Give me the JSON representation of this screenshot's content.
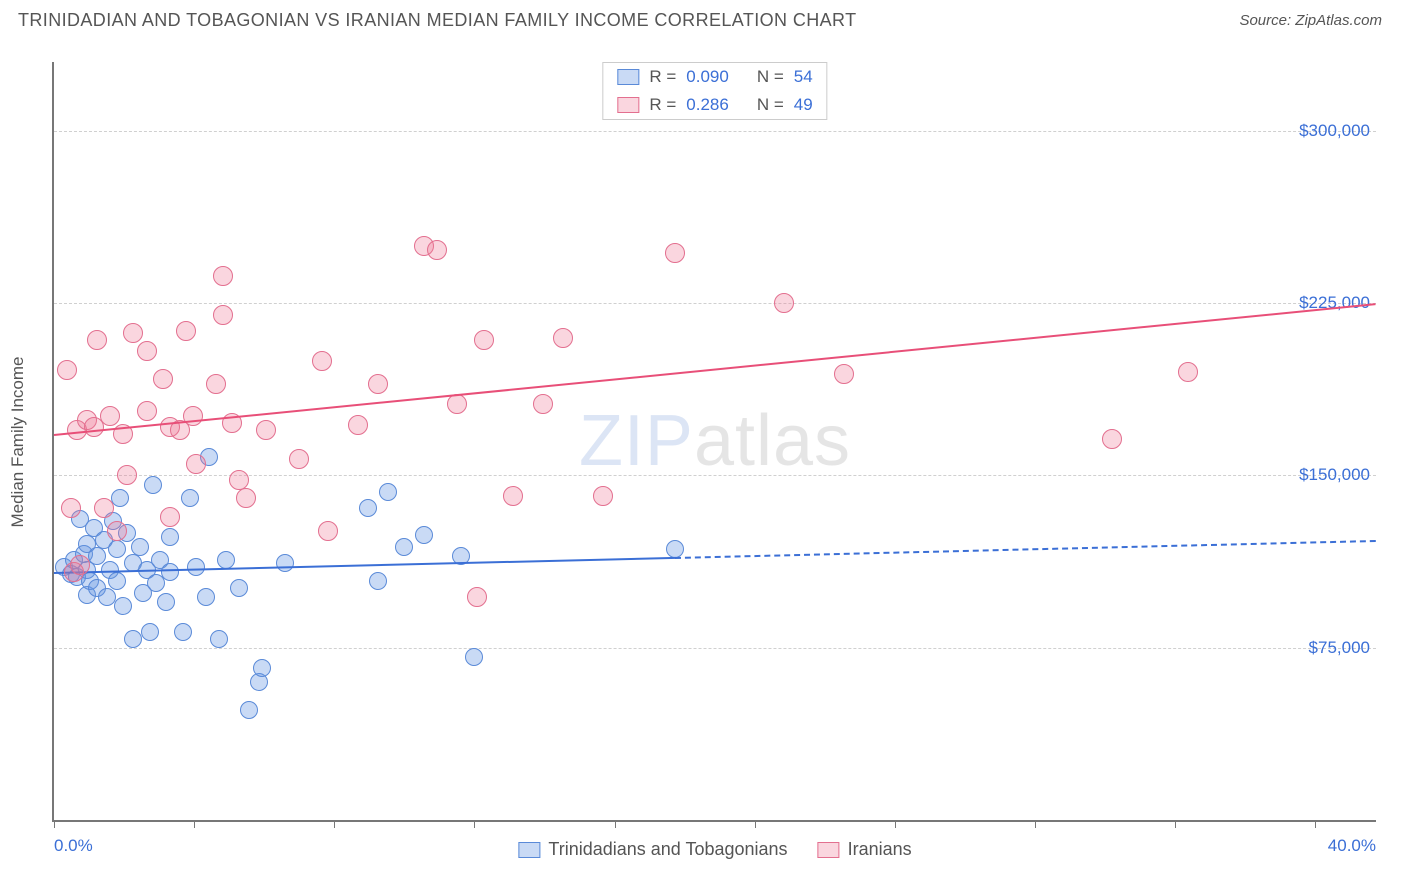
{
  "title": "TRINIDADIAN AND TOBAGONIAN VS IRANIAN MEDIAN FAMILY INCOME CORRELATION CHART",
  "source": "Source: ZipAtlas.com",
  "watermark": {
    "a": "ZIP",
    "b": "atlas"
  },
  "chart": {
    "type": "scatter-with-trend",
    "background_color": "#ffffff",
    "grid_color": "#d0d0d0",
    "axis_color": "#777777",
    "value_label_color": "#3b6fd6",
    "text_color": "#555555",
    "x": {
      "min": 0.0,
      "max": 40.0,
      "min_label": "0.0%",
      "max_label": "40.0%",
      "tick_positions_pct": [
        0,
        0.106,
        0.212,
        0.318,
        0.424,
        0.53,
        0.636,
        0.742,
        0.848,
        0.954
      ]
    },
    "y": {
      "min": 0,
      "max": 330000,
      "gridlines": [
        75000,
        150000,
        225000,
        300000
      ],
      "gridline_labels": [
        "$75,000",
        "$150,000",
        "$225,000",
        "$300,000"
      ],
      "axis_label": "Median Family Income"
    },
    "legend_top": [
      {
        "series": "a",
        "r_label": "R =",
        "r": "0.090",
        "n_label": "N =",
        "n": "54"
      },
      {
        "series": "b",
        "r_label": "R =",
        "r": "0.286",
        "n_label": "N =",
        "n": "49"
      }
    ],
    "legend_bottom": [
      {
        "series": "a",
        "label": "Trinidadians and Tobagonians"
      },
      {
        "series": "b",
        "label": "Iranians"
      }
    ],
    "series": {
      "a": {
        "name": "Trinidadians and Tobagonians",
        "fill": "rgba(100,150,225,0.35)",
        "stroke": "#5a8ad8",
        "line_color": "#3b6fd6",
        "marker_radius": 9,
        "trend": {
          "y_at_xmin": 108000,
          "y_at_xmax": 122000,
          "solid_until_x": 18.8,
          "dash": "6,5"
        },
        "points": [
          [
            0.3,
            110000
          ],
          [
            0.5,
            107000
          ],
          [
            0.6,
            113000
          ],
          [
            0.7,
            106000
          ],
          [
            0.8,
            131000
          ],
          [
            0.9,
            116000
          ],
          [
            1.0,
            98000
          ],
          [
            1.0,
            109000
          ],
          [
            1.0,
            120000
          ],
          [
            1.1,
            104000
          ],
          [
            1.2,
            127000
          ],
          [
            1.3,
            101000
          ],
          [
            1.3,
            115000
          ],
          [
            1.5,
            122000
          ],
          [
            1.6,
            97000
          ],
          [
            1.7,
            109000
          ],
          [
            1.8,
            130000
          ],
          [
            1.9,
            118000
          ],
          [
            1.9,
            104000
          ],
          [
            2.0,
            140000
          ],
          [
            2.1,
            93000
          ],
          [
            2.2,
            125000
          ],
          [
            2.4,
            112000
          ],
          [
            2.4,
            79000
          ],
          [
            2.6,
            119000
          ],
          [
            2.7,
            99000
          ],
          [
            2.8,
            109000
          ],
          [
            2.9,
            82000
          ],
          [
            3.0,
            146000
          ],
          [
            3.1,
            103000
          ],
          [
            3.2,
            113000
          ],
          [
            3.4,
            95000
          ],
          [
            3.5,
            123000
          ],
          [
            3.5,
            108000
          ],
          [
            3.9,
            82000
          ],
          [
            4.1,
            140000
          ],
          [
            4.3,
            110000
          ],
          [
            4.6,
            97000
          ],
          [
            4.7,
            158000
          ],
          [
            5.0,
            79000
          ],
          [
            5.2,
            113000
          ],
          [
            5.6,
            101000
          ],
          [
            5.9,
            48000
          ],
          [
            6.2,
            60000
          ],
          [
            6.3,
            66000
          ],
          [
            7.0,
            112000
          ],
          [
            9.5,
            136000
          ],
          [
            9.8,
            104000
          ],
          [
            10.1,
            143000
          ],
          [
            10.6,
            119000
          ],
          [
            11.2,
            124000
          ],
          [
            12.3,
            115000
          ],
          [
            12.7,
            71000
          ],
          [
            18.8,
            118000
          ]
        ]
      },
      "b": {
        "name": "Iranians",
        "fill": "rgba(240,120,150,0.30)",
        "stroke": "#e36f8f",
        "line_color": "#e84f78",
        "marker_radius": 10,
        "trend": {
          "y_at_xmin": 168000,
          "y_at_xmax": 225000,
          "solid_until_x": 40.0,
          "dash": ""
        },
        "points": [
          [
            0.4,
            196000
          ],
          [
            0.5,
            136000
          ],
          [
            0.6,
            108000
          ],
          [
            0.7,
            170000
          ],
          [
            0.8,
            111000
          ],
          [
            1.0,
            174000
          ],
          [
            1.2,
            171000
          ],
          [
            1.3,
            209000
          ],
          [
            1.5,
            136000
          ],
          [
            1.7,
            176000
          ],
          [
            1.9,
            126000
          ],
          [
            2.1,
            168000
          ],
          [
            2.2,
            150000
          ],
          [
            2.4,
            212000
          ],
          [
            2.8,
            178000
          ],
          [
            2.8,
            204000
          ],
          [
            3.3,
            192000
          ],
          [
            3.5,
            171000
          ],
          [
            3.5,
            132000
          ],
          [
            3.8,
            170000
          ],
          [
            4.0,
            213000
          ],
          [
            4.2,
            176000
          ],
          [
            4.3,
            155000
          ],
          [
            4.9,
            190000
          ],
          [
            5.1,
            220000
          ],
          [
            5.1,
            237000
          ],
          [
            5.4,
            173000
          ],
          [
            5.6,
            148000
          ],
          [
            5.8,
            140000
          ],
          [
            6.4,
            170000
          ],
          [
            7.4,
            157000
          ],
          [
            8.1,
            200000
          ],
          [
            8.3,
            126000
          ],
          [
            9.2,
            172000
          ],
          [
            9.8,
            190000
          ],
          [
            11.2,
            250000
          ],
          [
            11.6,
            248000
          ],
          [
            12.2,
            181000
          ],
          [
            12.8,
            97000
          ],
          [
            13.0,
            209000
          ],
          [
            13.9,
            141000
          ],
          [
            14.8,
            181000
          ],
          [
            15.4,
            210000
          ],
          [
            16.6,
            141000
          ],
          [
            18.8,
            247000
          ],
          [
            22.1,
            225000
          ],
          [
            23.9,
            194000
          ],
          [
            32.0,
            166000
          ],
          [
            34.3,
            195000
          ]
        ]
      }
    }
  }
}
